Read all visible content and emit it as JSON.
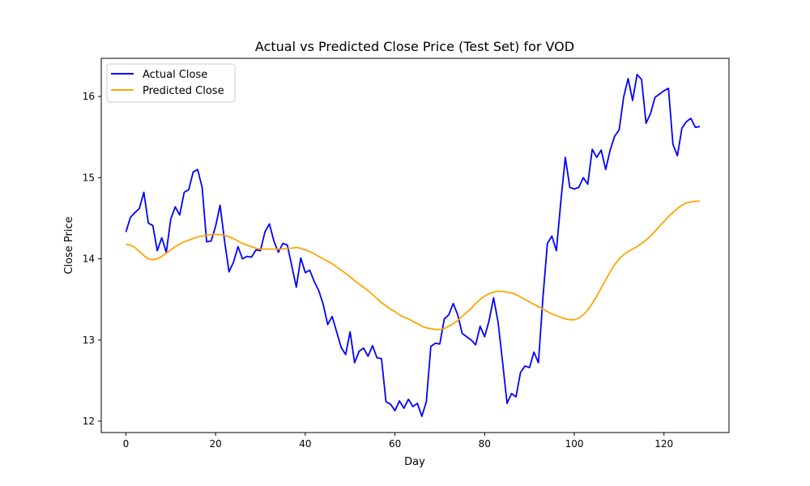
{
  "chart_data": {
    "type": "line",
    "title": "Actual vs Predicted Close Price (Test Set) for VOD",
    "xlabel": "Day",
    "ylabel": "Close Price",
    "xlim": [
      -5.5,
      134.5
    ],
    "ylim": [
      11.86,
      16.47
    ],
    "xticks": [
      0,
      20,
      40,
      60,
      80,
      100,
      120
    ],
    "yticks": [
      12,
      13,
      14,
      15,
      16
    ],
    "grid": false,
    "legend_position": "top-left",
    "series": [
      {
        "name": "Actual Close",
        "color": "#0000ff",
        "x": [
          0,
          1,
          2,
          3,
          4,
          5,
          6,
          7,
          8,
          9,
          10,
          11,
          12,
          13,
          14,
          15,
          16,
          17,
          18,
          19,
          20,
          21,
          22,
          23,
          24,
          25,
          26,
          27,
          28,
          29,
          30,
          31,
          32,
          33,
          34,
          35,
          36,
          37,
          38,
          39,
          40,
          41,
          42,
          43,
          44,
          45,
          46,
          47,
          48,
          49,
          50,
          51,
          52,
          53,
          54,
          55,
          56,
          57,
          58,
          59,
          60,
          61,
          62,
          63,
          64,
          65,
          66,
          67,
          68,
          69,
          70,
          71,
          72,
          73,
          74,
          75,
          76,
          77,
          78,
          79,
          80,
          81,
          82,
          83,
          84,
          85,
          86,
          87,
          88,
          89,
          90,
          91,
          92,
          93,
          94,
          95,
          96,
          97,
          98,
          99,
          100,
          101,
          102,
          103,
          104,
          105,
          106,
          107,
          108,
          109,
          110,
          111,
          112,
          113,
          114,
          115,
          116,
          117,
          118,
          119,
          120,
          121,
          122,
          123,
          124,
          125,
          126,
          127,
          128
        ],
        "y": [
          14.33,
          14.51,
          14.57,
          14.62,
          14.82,
          14.44,
          14.41,
          14.1,
          14.26,
          14.08,
          14.49,
          14.64,
          14.54,
          14.82,
          14.85,
          15.07,
          15.1,
          14.88,
          14.21,
          14.22,
          14.4,
          14.66,
          14.22,
          13.84,
          13.96,
          14.15,
          14.0,
          14.03,
          14.02,
          14.11,
          14.1,
          14.33,
          14.43,
          14.22,
          14.08,
          14.19,
          14.17,
          13.91,
          13.65,
          14.01,
          13.83,
          13.86,
          13.72,
          13.61,
          13.44,
          13.19,
          13.29,
          13.1,
          12.91,
          12.82,
          13.1,
          12.72,
          12.86,
          12.9,
          12.8,
          12.93,
          12.78,
          12.77,
          12.24,
          12.21,
          12.13,
          12.25,
          12.16,
          12.27,
          12.18,
          12.22,
          12.06,
          12.24,
          12.92,
          12.96,
          12.95,
          13.26,
          13.31,
          13.45,
          13.31,
          13.08,
          13.04,
          13.0,
          12.94,
          13.17,
          13.04,
          13.24,
          13.52,
          13.22,
          12.73,
          12.22,
          12.34,
          12.3,
          12.6,
          12.68,
          12.66,
          12.85,
          12.72,
          13.52,
          14.19,
          14.28,
          14.1,
          14.71,
          15.25,
          14.88,
          14.86,
          14.88,
          15.0,
          14.92,
          15.35,
          15.25,
          15.34,
          15.1,
          15.34,
          15.51,
          15.59,
          15.99,
          16.22,
          15.95,
          16.27,
          16.21,
          15.67,
          15.79,
          15.99,
          16.03,
          16.07,
          16.1,
          15.41,
          15.27,
          15.61,
          15.69,
          15.73,
          15.62,
          15.63
        ]
      },
      {
        "name": "Predicted Close",
        "color": "#ffa500",
        "x": [
          0,
          1,
          2,
          3,
          4,
          5,
          6,
          7,
          8,
          9,
          10,
          11,
          12,
          13,
          14,
          15,
          16,
          17,
          18,
          19,
          20,
          21,
          22,
          23,
          24,
          25,
          26,
          27,
          28,
          29,
          30,
          31,
          32,
          33,
          34,
          35,
          36,
          37,
          38,
          39,
          40,
          41,
          42,
          43,
          44,
          45,
          46,
          47,
          48,
          49,
          50,
          51,
          52,
          53,
          54,
          55,
          56,
          57,
          58,
          59,
          60,
          61,
          62,
          63,
          64,
          65,
          66,
          67,
          68,
          69,
          70,
          71,
          72,
          73,
          74,
          75,
          76,
          77,
          78,
          79,
          80,
          81,
          82,
          83,
          84,
          85,
          86,
          87,
          88,
          89,
          90,
          91,
          92,
          93,
          94,
          95,
          96,
          97,
          98,
          99,
          100,
          101,
          102,
          103,
          104,
          105,
          106,
          107,
          108,
          109,
          110,
          111,
          112,
          113,
          114,
          115,
          116,
          117,
          118,
          119,
          120,
          121,
          122,
          123,
          124,
          125,
          126,
          127,
          128
        ],
        "y": [
          14.18,
          14.17,
          14.14,
          14.09,
          14.04,
          14.0,
          13.99,
          14.0,
          14.03,
          14.07,
          14.11,
          14.15,
          14.18,
          14.21,
          14.23,
          14.25,
          14.27,
          14.28,
          14.29,
          14.3,
          14.3,
          14.3,
          14.29,
          14.27,
          14.25,
          14.22,
          14.19,
          14.17,
          14.15,
          14.13,
          14.12,
          14.12,
          14.12,
          14.12,
          14.12,
          14.12,
          14.13,
          14.13,
          14.14,
          14.13,
          14.11,
          14.09,
          14.06,
          14.03,
          14.0,
          13.97,
          13.94,
          13.9,
          13.86,
          13.82,
          13.78,
          13.73,
          13.69,
          13.65,
          13.61,
          13.56,
          13.51,
          13.46,
          13.42,
          13.38,
          13.35,
          13.31,
          13.28,
          13.26,
          13.23,
          13.2,
          13.17,
          13.15,
          13.14,
          13.13,
          13.13,
          13.14,
          13.17,
          13.2,
          13.24,
          13.29,
          13.34,
          13.39,
          13.45,
          13.5,
          13.54,
          13.57,
          13.59,
          13.6,
          13.6,
          13.59,
          13.58,
          13.56,
          13.53,
          13.5,
          13.47,
          13.44,
          13.41,
          13.38,
          13.35,
          13.32,
          13.3,
          13.28,
          13.26,
          13.25,
          13.25,
          13.27,
          13.31,
          13.37,
          13.45,
          13.54,
          13.64,
          13.74,
          13.84,
          13.93,
          14.0,
          14.05,
          14.09,
          14.12,
          14.15,
          14.19,
          14.23,
          14.28,
          14.34,
          14.4,
          14.46,
          14.52,
          14.57,
          14.62,
          14.66,
          14.69,
          14.7,
          14.71,
          14.71
        ]
      }
    ]
  }
}
